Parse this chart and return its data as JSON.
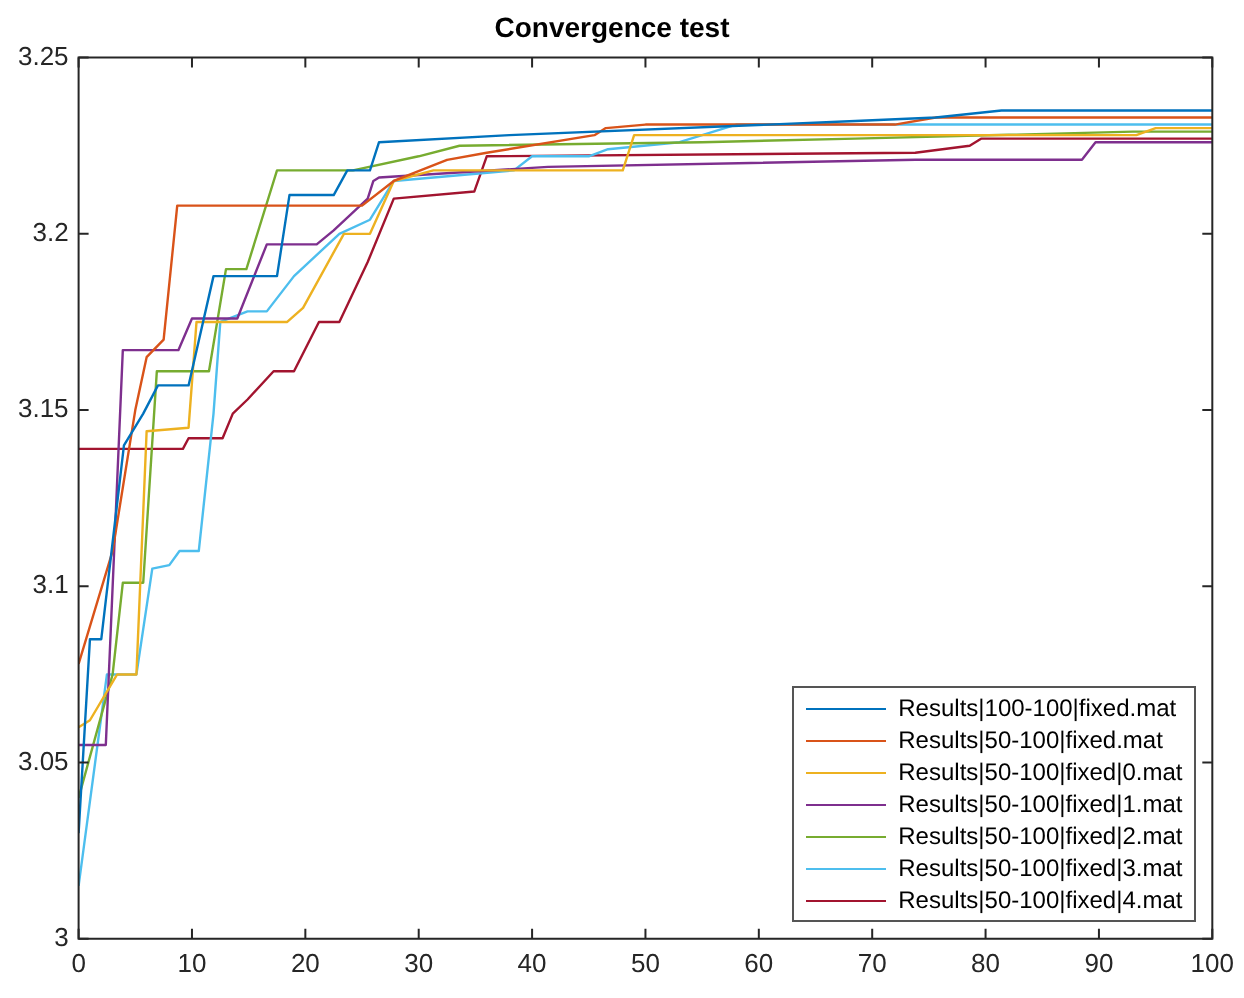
{
  "chart_data": {
    "type": "line",
    "title": "Convergence test",
    "xlim": [
      0,
      100
    ],
    "xticks": [
      0,
      10,
      20,
      30,
      40,
      50,
      60,
      70,
      80,
      90,
      100
    ],
    "ylim": [
      3,
      3.25
    ],
    "yticks": [
      3,
      3.05,
      3.1,
      3.15,
      3.2,
      3.25
    ],
    "grid": false,
    "legend": "bottom right",
    "marker": "none",
    "line_style": "solid",
    "series": [
      {
        "name": "Results|100-100|fixed.mat",
        "color": "#0072bd",
        "x": [
          0,
          1,
          2,
          4,
          5.7,
          7,
          9.7,
          11.9,
          17.5,
          18.6,
          22.5,
          23.7,
          25.7,
          26.5,
          38,
          68.5,
          75.6,
          81.4,
          100
        ],
        "values": [
          3.03,
          3.085,
          3.085,
          3.14,
          3.149,
          3.157,
          3.157,
          3.188,
          3.188,
          3.211,
          3.211,
          3.218,
          3.218,
          3.226,
          3.228,
          3.232,
          3.233,
          3.235,
          3.235
        ]
      },
      {
        "name": "Results|50-100|fixed.mat",
        "color": "#d95319",
        "x": [
          0,
          3,
          5,
          6,
          7.5,
          8.7,
          25,
          27.8,
          32.5,
          36,
          45.5,
          46.5,
          50,
          72,
          75.6,
          100
        ],
        "values": [
          3.078,
          3.11,
          3.15,
          3.165,
          3.17,
          3.208,
          3.208,
          3.215,
          3.221,
          3.223,
          3.228,
          3.23,
          3.231,
          3.231,
          3.233,
          3.233
        ]
      },
      {
        "name": "Results|50-100|fixed|0.mat",
        "color": "#edb120",
        "x": [
          0,
          1,
          3.4,
          5.1,
          6,
          9.7,
          10.4,
          18.4,
          19.8,
          23.4,
          25.7,
          27.8,
          31.3,
          48,
          49,
          93.3,
          95,
          100
        ],
        "values": [
          3.06,
          3.062,
          3.075,
          3.075,
          3.144,
          3.145,
          3.175,
          3.175,
          3.179,
          3.2,
          3.2,
          3.215,
          3.218,
          3.218,
          3.228,
          3.228,
          3.23,
          3.23
        ]
      },
      {
        "name": "Results|50-100|fixed|1.mat",
        "color": "#7e2f8e",
        "x": [
          0,
          2.4,
          3.9,
          8.8,
          10,
          14,
          16.6,
          21,
          22.5,
          25.5,
          26,
          26.5,
          41.4,
          73.8,
          88.5,
          89.7,
          100
        ],
        "values": [
          3.055,
          3.055,
          3.167,
          3.167,
          3.176,
          3.176,
          3.197,
          3.197,
          3.201,
          3.21,
          3.215,
          3.216,
          3.219,
          3.221,
          3.221,
          3.226,
          3.226
        ]
      },
      {
        "name": "Results|50-100|fixed|2.mat",
        "color": "#77ac30",
        "x": [
          0,
          3,
          3.9,
          5.7,
          6.9,
          11.5,
          13,
          14.8,
          17.5,
          24.2,
          30,
          33.6,
          55,
          68.5,
          93,
          100
        ],
        "values": [
          3.04,
          3.075,
          3.101,
          3.101,
          3.161,
          3.161,
          3.19,
          3.19,
          3.218,
          3.218,
          3.222,
          3.225,
          3.226,
          3.227,
          3.229,
          3.229
        ]
      },
      {
        "name": "Results|50-100|fixed|3.mat",
        "color": "#4dbeee",
        "x": [
          0,
          2.5,
          5.1,
          6.5,
          8,
          8.9,
          10.6,
          11.9,
          12.5,
          14.9,
          16.6,
          19,
          23,
          25.7,
          27.8,
          38.4,
          40,
          45,
          46.7,
          53,
          58,
          100
        ],
        "values": [
          3.015,
          3.075,
          3.075,
          3.105,
          3.106,
          3.11,
          3.11,
          3.149,
          3.175,
          3.178,
          3.178,
          3.188,
          3.2,
          3.204,
          3.215,
          3.218,
          3.222,
          3.222,
          3.224,
          3.226,
          3.231,
          3.231
        ]
      },
      {
        "name": "Results|50-100|fixed|4.mat",
        "color": "#a2142f",
        "x": [
          0,
          9.2,
          9.7,
          12.7,
          13.6,
          14.9,
          17.2,
          19,
          21.2,
          23,
          25.5,
          27.8,
          34.9,
          36,
          73.8,
          78.6,
          79.6,
          100
        ],
        "values": [
          3.139,
          3.139,
          3.142,
          3.142,
          3.149,
          3.153,
          3.161,
          3.161,
          3.175,
          3.175,
          3.192,
          3.21,
          3.212,
          3.222,
          3.223,
          3.225,
          3.227,
          3.227
        ]
      }
    ]
  }
}
